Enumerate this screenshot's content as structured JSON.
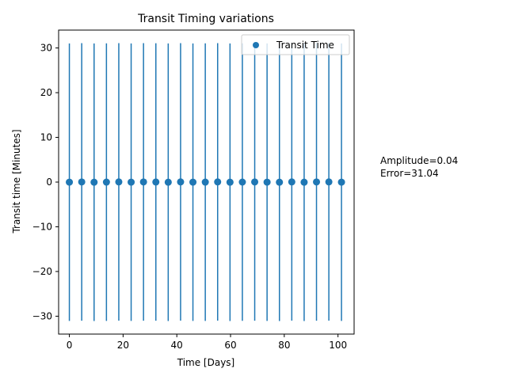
{
  "chart_data": {
    "type": "scatter",
    "title": "Transit Timing variations",
    "xlabel": "Time [Days]",
    "ylabel": "Transit time [Minutes]",
    "xlim": [
      -4,
      106
    ],
    "ylim": [
      -34,
      34
    ],
    "xticks": [
      0,
      20,
      40,
      60,
      80,
      100
    ],
    "yticks": [
      -30,
      -20,
      -10,
      0,
      10,
      20,
      30
    ],
    "xtick_labels": [
      "0",
      "20",
      "40",
      "60",
      "80",
      "100"
    ],
    "ytick_labels": [
      "−30",
      "−20",
      "−10",
      "0",
      "10",
      "20",
      "30"
    ],
    "grid": false,
    "legend_position": "upper right",
    "series": [
      {
        "name": "Transit Time",
        "color": "#1f77b4",
        "x": [
          0,
          4.6,
          9.2,
          13.8,
          18.4,
          23.0,
          27.6,
          32.2,
          36.8,
          41.4,
          46.0,
          50.6,
          55.2,
          59.8,
          64.4,
          69.0,
          73.6,
          78.2,
          82.8,
          87.4,
          92.0,
          96.6,
          101.3
        ],
        "y": [
          -0.02,
          0.03,
          -0.03,
          -0.01,
          0.04,
          -0.02,
          0.03,
          0.02,
          -0.03,
          0.04,
          -0.02,
          -0.01,
          0.04,
          -0.03,
          0.0,
          0.03,
          -0.02,
          -0.03,
          0.04,
          -0.03,
          0.03,
          0.04,
          -0.02
        ],
        "yerr": 31.04
      }
    ],
    "annotations": [
      "Amplitude=0.04",
      "Error=31.04"
    ]
  }
}
